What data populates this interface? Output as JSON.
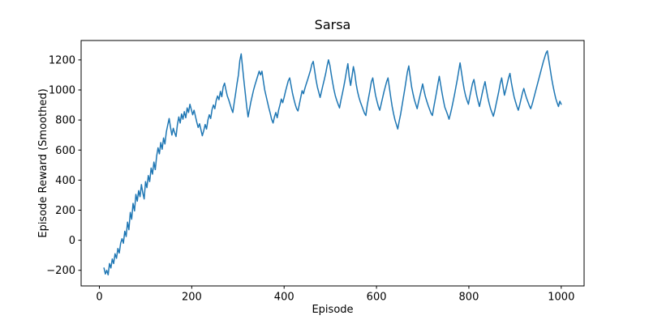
{
  "chart_data": {
    "type": "line",
    "title": "Sarsa",
    "xlabel": "Episode",
    "ylabel": "Episode Reward (Smoothed)",
    "xlim": [
      -39.5,
      1049.5
    ],
    "ylim": [
      -304,
      1329
    ],
    "xticks": [
      0,
      200,
      400,
      600,
      800,
      1000
    ],
    "yticks": [
      -200,
      0,
      200,
      400,
      600,
      800,
      1000,
      1200
    ],
    "grid": false,
    "legend": "none",
    "line_color": "#1f77b4",
    "background_color": "#ffffff",
    "series": [
      {
        "name": "Sarsa episode reward (smoothed)",
        "points": [
          [
            10,
            -185
          ],
          [
            13,
            -225
          ],
          [
            16,
            -200
          ],
          [
            19,
            -230
          ],
          [
            22,
            -155
          ],
          [
            25,
            -185
          ],
          [
            28,
            -125
          ],
          [
            31,
            -155
          ],
          [
            34,
            -90
          ],
          [
            37,
            -120
          ],
          [
            40,
            -55
          ],
          [
            43,
            -85
          ],
          [
            46,
            -20
          ],
          [
            49,
            10
          ],
          [
            52,
            -20
          ],
          [
            55,
            60
          ],
          [
            58,
            25
          ],
          [
            61,
            120
          ],
          [
            64,
            70
          ],
          [
            67,
            185
          ],
          [
            70,
            140
          ],
          [
            73,
            245
          ],
          [
            76,
            195
          ],
          [
            79,
            305
          ],
          [
            82,
            260
          ],
          [
            85,
            330
          ],
          [
            88,
            290
          ],
          [
            91,
            370
          ],
          [
            94,
            315
          ],
          [
            97,
            275
          ],
          [
            100,
            390
          ],
          [
            103,
            350
          ],
          [
            106,
            430
          ],
          [
            109,
            390
          ],
          [
            112,
            480
          ],
          [
            115,
            440
          ],
          [
            118,
            520
          ],
          [
            121,
            470
          ],
          [
            124,
            560
          ],
          [
            127,
            615
          ],
          [
            130,
            575
          ],
          [
            133,
            650
          ],
          [
            136,
            605
          ],
          [
            139,
            680
          ],
          [
            142,
            640
          ],
          [
            145,
            720
          ],
          [
            148,
            765
          ],
          [
            151,
            810
          ],
          [
            154,
            750
          ],
          [
            157,
            700
          ],
          [
            160,
            745
          ],
          [
            163,
            715
          ],
          [
            166,
            690
          ],
          [
            169,
            770
          ],
          [
            172,
            820
          ],
          [
            175,
            780
          ],
          [
            178,
            840
          ],
          [
            181,
            805
          ],
          [
            184,
            855
          ],
          [
            187,
            815
          ],
          [
            190,
            880
          ],
          [
            193,
            850
          ],
          [
            196,
            905
          ],
          [
            199,
            870
          ],
          [
            202,
            835
          ],
          [
            205,
            865
          ],
          [
            208,
            825
          ],
          [
            211,
            785
          ],
          [
            214,
            750
          ],
          [
            217,
            775
          ],
          [
            220,
            735
          ],
          [
            223,
            695
          ],
          [
            226,
            730
          ],
          [
            229,
            770
          ],
          [
            232,
            740
          ],
          [
            235,
            800
          ],
          [
            238,
            835
          ],
          [
            241,
            810
          ],
          [
            244,
            870
          ],
          [
            247,
            900
          ],
          [
            250,
            875
          ],
          [
            253,
            930
          ],
          [
            256,
            960
          ],
          [
            259,
            935
          ],
          [
            262,
            990
          ],
          [
            265,
            955
          ],
          [
            268,
            1020
          ],
          [
            271,
            1045
          ],
          [
            274,
            1000
          ],
          [
            277,
            960
          ],
          [
            280,
            935
          ],
          [
            283,
            905
          ],
          [
            286,
            875
          ],
          [
            289,
            850
          ],
          [
            292,
            915
          ],
          [
            295,
            975
          ],
          [
            298,
            1040
          ],
          [
            301,
            1100
          ],
          [
            304,
            1195
          ],
          [
            307,
            1240
          ],
          [
            310,
            1150
          ],
          [
            313,
            1060
          ],
          [
            316,
            975
          ],
          [
            319,
            890
          ],
          [
            322,
            820
          ],
          [
            325,
            870
          ],
          [
            328,
            920
          ],
          [
            331,
            960
          ],
          [
            334,
            1000
          ],
          [
            337,
            1035
          ],
          [
            340,
            1065
          ],
          [
            343,
            1095
          ],
          [
            346,
            1125
          ],
          [
            349,
            1100
          ],
          [
            352,
            1125
          ],
          [
            355,
            1060
          ],
          [
            358,
            1000
          ],
          [
            361,
            960
          ],
          [
            364,
            920
          ],
          [
            367,
            880
          ],
          [
            370,
            845
          ],
          [
            373,
            805
          ],
          [
            376,
            780
          ],
          [
            379,
            820
          ],
          [
            382,
            850
          ],
          [
            385,
            815
          ],
          [
            388,
            865
          ],
          [
            391,
            900
          ],
          [
            394,
            940
          ],
          [
            397,
            915
          ],
          [
            400,
            950
          ],
          [
            403,
            990
          ],
          [
            406,
            1025
          ],
          [
            409,
            1060
          ],
          [
            412,
            1080
          ],
          [
            415,
            1030
          ],
          [
            418,
            980
          ],
          [
            421,
            940
          ],
          [
            424,
            905
          ],
          [
            427,
            875
          ],
          [
            430,
            860
          ],
          [
            433,
            905
          ],
          [
            436,
            950
          ],
          [
            439,
            995
          ],
          [
            442,
            975
          ],
          [
            445,
            1010
          ],
          [
            448,
            1040
          ],
          [
            451,
            1070
          ],
          [
            454,
            1100
          ],
          [
            457,
            1130
          ],
          [
            460,
            1170
          ],
          [
            463,
            1190
          ],
          [
            466,
            1130
          ],
          [
            469,
            1070
          ],
          [
            472,
            1020
          ],
          [
            475,
            985
          ],
          [
            478,
            950
          ],
          [
            481,
            990
          ],
          [
            484,
            1030
          ],
          [
            487,
            1070
          ],
          [
            490,
            1110
          ],
          [
            493,
            1160
          ],
          [
            496,
            1200
          ],
          [
            499,
            1165
          ],
          [
            502,
            1105
          ],
          [
            505,
            1050
          ],
          [
            508,
            1000
          ],
          [
            511,
            960
          ],
          [
            514,
            930
          ],
          [
            517,
            905
          ],
          [
            520,
            880
          ],
          [
            523,
            930
          ],
          [
            526,
            975
          ],
          [
            529,
            1020
          ],
          [
            532,
            1070
          ],
          [
            535,
            1125
          ],
          [
            538,
            1175
          ],
          [
            541,
            1085
          ],
          [
            544,
            1030
          ],
          [
            547,
            1090
          ],
          [
            550,
            1155
          ],
          [
            553,
            1110
          ],
          [
            556,
            1040
          ],
          [
            559,
            990
          ],
          [
            562,
            950
          ],
          [
            565,
            920
          ],
          [
            568,
            895
          ],
          [
            571,
            870
          ],
          [
            574,
            845
          ],
          [
            577,
            830
          ],
          [
            580,
            900
          ],
          [
            583,
            950
          ],
          [
            586,
            1000
          ],
          [
            589,
            1055
          ],
          [
            592,
            1080
          ],
          [
            595,
            1020
          ],
          [
            598,
            965
          ],
          [
            601,
            925
          ],
          [
            604,
            890
          ],
          [
            607,
            865
          ],
          [
            610,
            905
          ],
          [
            613,
            945
          ],
          [
            616,
            985
          ],
          [
            619,
            1020
          ],
          [
            622,
            1055
          ],
          [
            625,
            1080
          ],
          [
            628,
            1015
          ],
          [
            631,
            950
          ],
          [
            634,
            890
          ],
          [
            637,
            840
          ],
          [
            640,
            800
          ],
          [
            643,
            770
          ],
          [
            646,
            740
          ],
          [
            649,
            790
          ],
          [
            652,
            835
          ],
          [
            655,
            890
          ],
          [
            658,
            945
          ],
          [
            661,
            1000
          ],
          [
            664,
            1060
          ],
          [
            667,
            1120
          ],
          [
            670,
            1160
          ],
          [
            673,
            1090
          ],
          [
            676,
            1020
          ],
          [
            679,
            975
          ],
          [
            682,
            935
          ],
          [
            685,
            905
          ],
          [
            688,
            875
          ],
          [
            691,
            920
          ],
          [
            694,
            960
          ],
          [
            697,
            1000
          ],
          [
            700,
            1040
          ],
          [
            703,
            995
          ],
          [
            706,
            955
          ],
          [
            709,
            925
          ],
          [
            712,
            895
          ],
          [
            715,
            870
          ],
          [
            718,
            845
          ],
          [
            721,
            830
          ],
          [
            724,
            885
          ],
          [
            727,
            935
          ],
          [
            730,
            985
          ],
          [
            733,
            1040
          ],
          [
            736,
            1090
          ],
          [
            739,
            1035
          ],
          [
            742,
            980
          ],
          [
            745,
            930
          ],
          [
            748,
            885
          ],
          [
            751,
            860
          ],
          [
            754,
            835
          ],
          [
            757,
            805
          ],
          [
            760,
            840
          ],
          [
            763,
            880
          ],
          [
            766,
            925
          ],
          [
            769,
            970
          ],
          [
            772,
            1020
          ],
          [
            775,
            1070
          ],
          [
            778,
            1125
          ],
          [
            781,
            1180
          ],
          [
            784,
            1120
          ],
          [
            787,
            1055
          ],
          [
            790,
            1000
          ],
          [
            793,
            960
          ],
          [
            796,
            930
          ],
          [
            799,
            905
          ],
          [
            802,
            955
          ],
          [
            805,
            1000
          ],
          [
            808,
            1045
          ],
          [
            811,
            1070
          ],
          [
            814,
            1015
          ],
          [
            817,
            965
          ],
          [
            820,
            925
          ],
          [
            823,
            890
          ],
          [
            826,
            935
          ],
          [
            829,
            980
          ],
          [
            832,
            1020
          ],
          [
            835,
            1055
          ],
          [
            838,
            1000
          ],
          [
            841,
            950
          ],
          [
            844,
            910
          ],
          [
            847,
            875
          ],
          [
            850,
            850
          ],
          [
            853,
            825
          ],
          [
            856,
            860
          ],
          [
            859,
            905
          ],
          [
            862,
            950
          ],
          [
            865,
            995
          ],
          [
            868,
            1045
          ],
          [
            871,
            1080
          ],
          [
            874,
            1020
          ],
          [
            877,
            965
          ],
          [
            880,
            1000
          ],
          [
            883,
            1040
          ],
          [
            886,
            1080
          ],
          [
            889,
            1110
          ],
          [
            892,
            1050
          ],
          [
            895,
            1000
          ],
          [
            898,
            955
          ],
          [
            901,
            920
          ],
          [
            904,
            890
          ],
          [
            907,
            865
          ],
          [
            910,
            900
          ],
          [
            913,
            940
          ],
          [
            916,
            980
          ],
          [
            919,
            1010
          ],
          [
            922,
            975
          ],
          [
            925,
            945
          ],
          [
            928,
            920
          ],
          [
            931,
            895
          ],
          [
            934,
            875
          ],
          [
            937,
            905
          ],
          [
            940,
            940
          ],
          [
            943,
            975
          ],
          [
            946,
            1010
          ],
          [
            949,
            1045
          ],
          [
            952,
            1080
          ],
          [
            955,
            1115
          ],
          [
            958,
            1150
          ],
          [
            961,
            1185
          ],
          [
            964,
            1215
          ],
          [
            967,
            1245
          ],
          [
            970,
            1260
          ],
          [
            973,
            1200
          ],
          [
            976,
            1140
          ],
          [
            979,
            1080
          ],
          [
            982,
            1030
          ],
          [
            985,
            985
          ],
          [
            988,
            945
          ],
          [
            991,
            915
          ],
          [
            994,
            890
          ],
          [
            997,
            925
          ],
          [
            1000,
            905
          ]
        ]
      }
    ]
  }
}
